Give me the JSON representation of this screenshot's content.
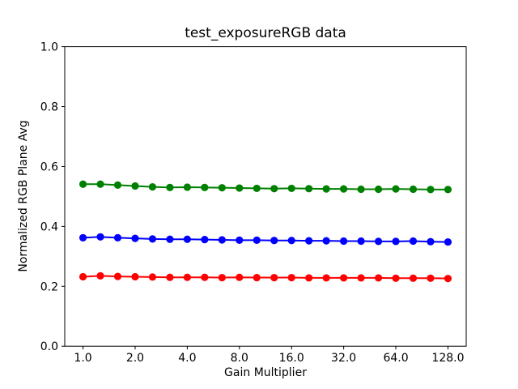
{
  "figure": {
    "background": "#ffffff"
  },
  "chart_data": {
    "type": "line",
    "title": "test_exposureRGB data",
    "xlabel": "Gain Multiplier",
    "ylabel": "Normalized RGB Plane Avg",
    "x_scale": "log2",
    "ylim": [
      0.0,
      1.0
    ],
    "xlim_log2": [
      -0.35,
      7.35
    ],
    "grid": false,
    "legend": null,
    "x": [
      1.0,
      1.26,
      1.587,
      2.0,
      2.52,
      3.175,
      4.0,
      5.04,
      6.35,
      8.0,
      10.079,
      12.699,
      16.0,
      20.159,
      25.398,
      32.0,
      40.317,
      50.797,
      64.0,
      80.635,
      101.594,
      128.0
    ],
    "series": [
      {
        "name": "red-plane",
        "color": "#ff0000",
        "marker": "circle",
        "values": [
          0.232,
          0.235,
          0.233,
          0.232,
          0.231,
          0.23,
          0.23,
          0.23,
          0.229,
          0.23,
          0.229,
          0.229,
          0.229,
          0.228,
          0.228,
          0.228,
          0.228,
          0.228,
          0.227,
          0.227,
          0.227,
          0.226
        ]
      },
      {
        "name": "green-plane",
        "color": "#008000",
        "marker": "circle",
        "values": [
          0.541,
          0.541,
          0.538,
          0.535,
          0.532,
          0.53,
          0.531,
          0.53,
          0.529,
          0.528,
          0.527,
          0.526,
          0.527,
          0.526,
          0.525,
          0.525,
          0.524,
          0.524,
          0.525,
          0.524,
          0.523,
          0.523
        ]
      },
      {
        "name": "blue-plane",
        "color": "#0000ff",
        "marker": "circle",
        "values": [
          0.362,
          0.365,
          0.362,
          0.36,
          0.358,
          0.357,
          0.357,
          0.356,
          0.355,
          0.354,
          0.354,
          0.353,
          0.353,
          0.352,
          0.352,
          0.351,
          0.351,
          0.35,
          0.35,
          0.351,
          0.349,
          0.348
        ]
      }
    ],
    "xticks": {
      "values": [
        1.0,
        2.0,
        4.0,
        8.0,
        16.0,
        32.0,
        64.0,
        128.0
      ],
      "labels": [
        "1.0",
        "2.0",
        "4.0",
        "8.0",
        "16.0",
        "32.0",
        "64.0",
        "128.0"
      ]
    },
    "yticks": {
      "values": [
        0.0,
        0.2,
        0.4,
        0.6,
        0.8,
        1.0
      ],
      "labels": [
        "0.0",
        "0.2",
        "0.4",
        "0.6",
        "0.8",
        "1.0"
      ]
    }
  }
}
